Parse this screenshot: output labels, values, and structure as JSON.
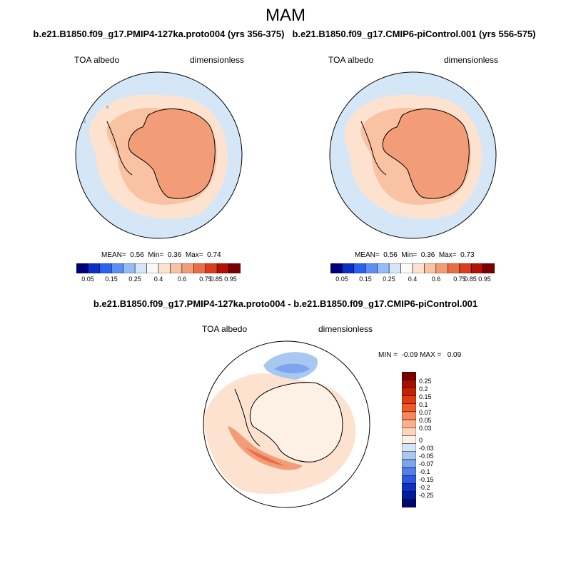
{
  "title": "MAM",
  "panels": [
    {
      "case": "b.e21.B1850.f09_g17.PMIP4-127ka.proto004 (yrs 356-375)",
      "variable": "TOA albedo",
      "units": "dimensionless",
      "stats": "MEAN=  0.56  Min=  0.36  Max=  0.74"
    },
    {
      "case": "b.e21.B1850.f09_g17.CMIP6-piControl.001 (yrs 556-575)",
      "variable": "TOA albedo",
      "units": "dimensionless",
      "stats": "MEAN=  0.56  Min=  0.36  Max=  0.73"
    }
  ],
  "difference": {
    "title": "b.e21.B1850.f09_g17.PMIP4-127ka.proto004 - b.e21.B1850.f09_g17.CMIP6-piControl.001",
    "variable": "TOA albedo",
    "units": "dimensionless",
    "stats": "MIN =  -0.09 MAX =   0.09"
  },
  "colorbar_top": {
    "labels": [
      "0.05",
      "0.15",
      "0.25",
      "0.4",
      "0.6",
      "0.75",
      "0.85",
      "0.95"
    ],
    "colors": [
      "#00007d",
      "#0a2fc7",
      "#2a62ee",
      "#5c8ff5",
      "#96bcf5",
      "#d5e6f7",
      "#f9f9f9",
      "#fde3cf",
      "#f9c2a2",
      "#f29d77",
      "#e86e46",
      "#d83d1e",
      "#b21205",
      "#7a0000"
    ]
  },
  "colorbar_diff": {
    "labels": [
      "0.25",
      "0.2",
      "0.15",
      "0.1",
      "0.07",
      "0.05",
      "0.03",
      "0",
      "-0.03",
      "-0.05",
      "-0.07",
      "-0.1",
      "-0.15",
      "-0.2",
      "-0.25"
    ],
    "colors": [
      "#7a0000",
      "#a70d00",
      "#c82000",
      "#e03c0c",
      "#f05a26",
      "#f8865a",
      "#fbb08b",
      "#fcd5ba",
      "#fdf0e4",
      "#d4e6f7",
      "#a8c8f2",
      "#7ca5ee",
      "#5080ea",
      "#2a58e2",
      "#0a30c8",
      "#001a9c",
      "#000a6e"
    ]
  }
}
